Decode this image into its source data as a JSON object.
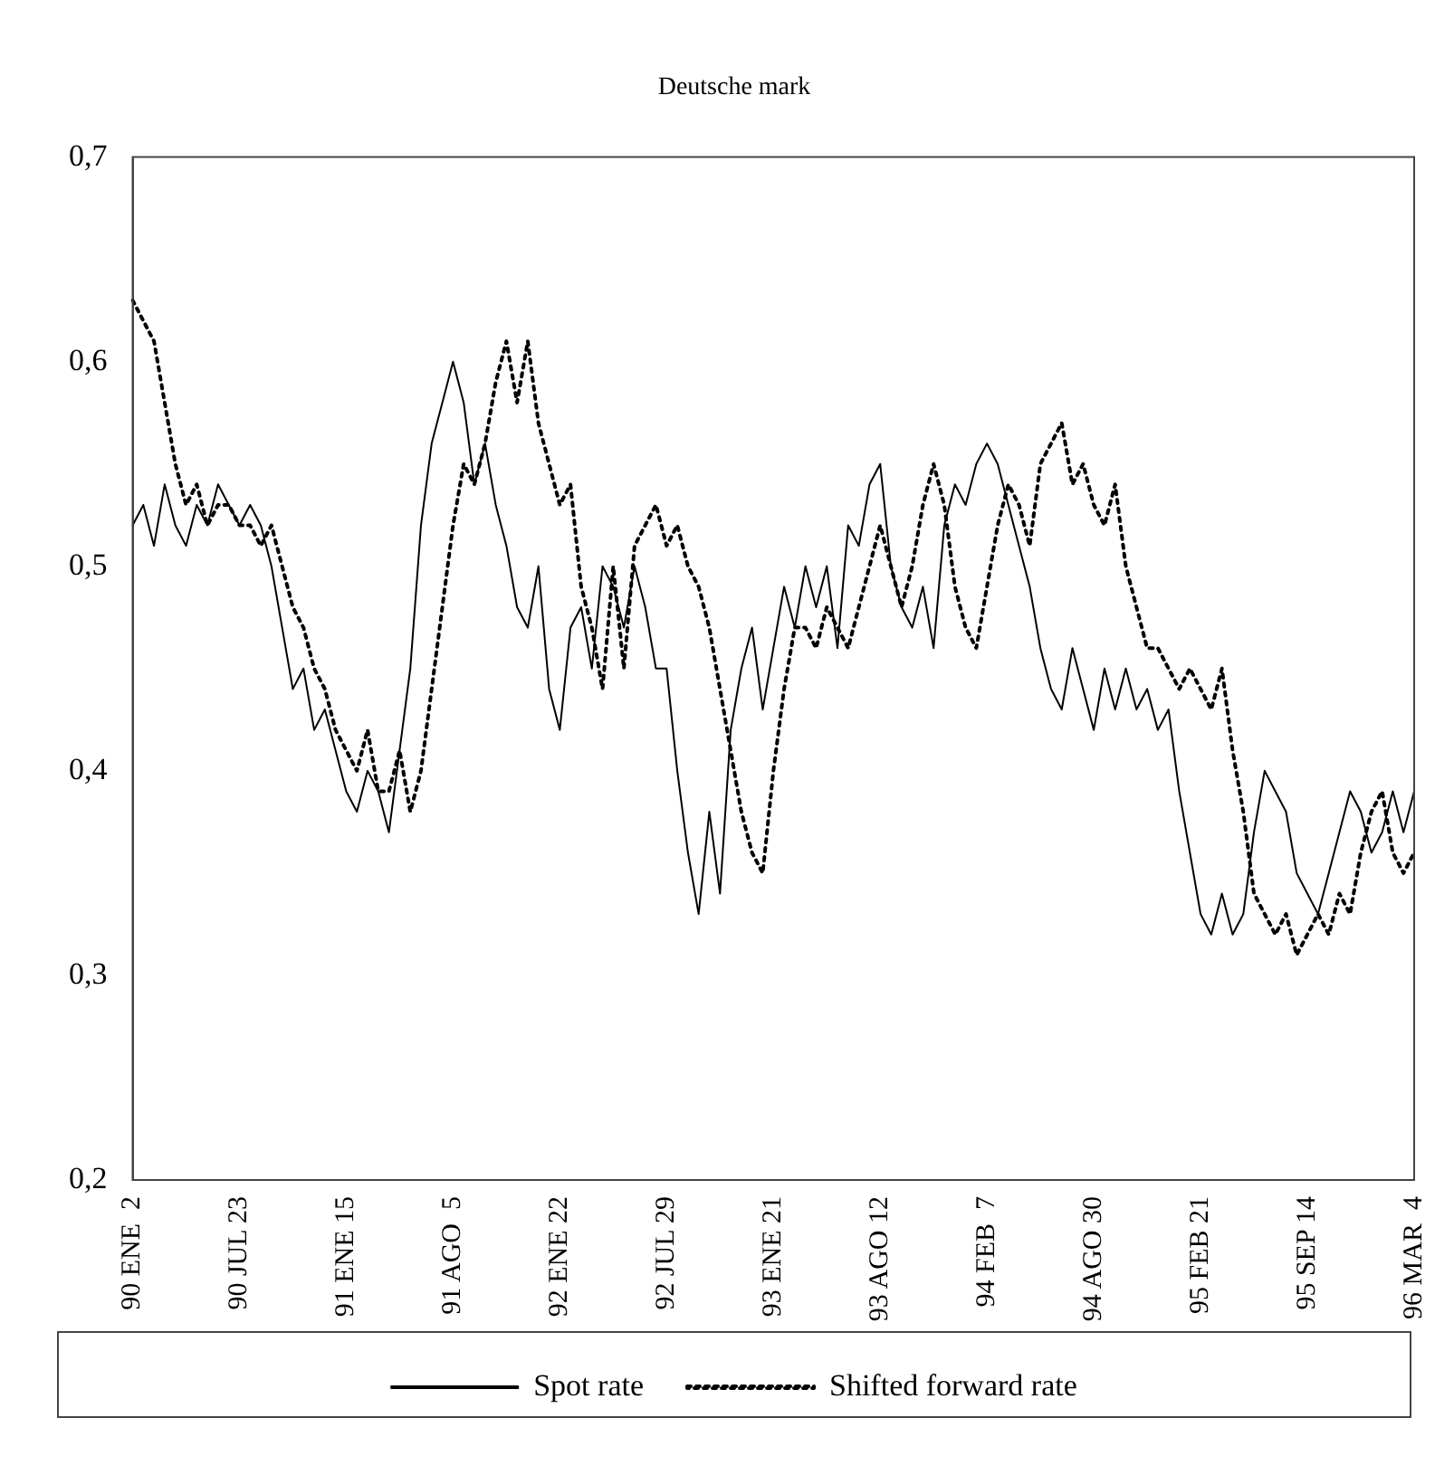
{
  "chart_data": {
    "type": "line",
    "title": "Deutsche mark",
    "categories": [
      "90 ENE  2",
      null,
      null,
      null,
      null,
      null,
      null,
      null,
      null,
      null,
      "90 JUL 23",
      null,
      null,
      null,
      null,
      null,
      null,
      null,
      null,
      null,
      "91 ENE 15",
      null,
      null,
      null,
      null,
      null,
      null,
      null,
      null,
      null,
      "91 AGO  5",
      null,
      null,
      null,
      null,
      null,
      null,
      null,
      null,
      null,
      "92 ENE 22",
      null,
      null,
      null,
      null,
      null,
      null,
      null,
      null,
      null,
      "92 JUL 29",
      null,
      null,
      null,
      null,
      null,
      null,
      null,
      null,
      null,
      "93 ENE 21",
      null,
      null,
      null,
      null,
      null,
      null,
      null,
      null,
      null,
      "93 AGO 12",
      null,
      null,
      null,
      null,
      null,
      null,
      null,
      null,
      null,
      "94 FEB  7",
      null,
      null,
      null,
      null,
      null,
      null,
      null,
      null,
      null,
      "94 AGO 30",
      null,
      null,
      null,
      null,
      null,
      null,
      null,
      null,
      null,
      "95 FEB 21",
      null,
      null,
      null,
      null,
      null,
      null,
      null,
      null,
      null,
      "95 SEP 14",
      null,
      null,
      null,
      null,
      null,
      null,
      null,
      null,
      null,
      "96 MAR  4"
    ],
    "series": [
      {
        "name": "Spot rate",
        "color": "#000000",
        "line_style": "solid",
        "values": [
          0.52,
          0.53,
          0.51,
          0.54,
          0.52,
          0.51,
          0.53,
          0.52,
          0.54,
          0.53,
          0.52,
          0.53,
          0.52,
          0.5,
          0.47,
          0.44,
          0.45,
          0.42,
          0.43,
          0.41,
          0.39,
          0.38,
          0.4,
          0.39,
          0.37,
          0.41,
          0.45,
          0.52,
          0.56,
          0.58,
          0.6,
          0.58,
          0.54,
          0.56,
          0.53,
          0.51,
          0.48,
          0.47,
          0.5,
          0.44,
          0.42,
          0.47,
          0.48,
          0.45,
          0.5,
          0.49,
          0.47,
          0.5,
          0.48,
          0.45,
          0.45,
          0.4,
          0.36,
          0.33,
          0.38,
          0.34,
          0.42,
          0.45,
          0.47,
          0.43,
          0.46,
          0.49,
          0.47,
          0.5,
          0.48,
          0.5,
          0.46,
          0.52,
          0.51,
          0.54,
          0.55,
          0.5,
          0.48,
          0.47,
          0.49,
          0.46,
          0.52,
          0.54,
          0.53,
          0.55,
          0.56,
          0.55,
          0.53,
          0.51,
          0.49,
          0.46,
          0.44,
          0.43,
          0.46,
          0.44,
          0.42,
          0.45,
          0.43,
          0.45,
          0.43,
          0.44,
          0.42,
          0.43,
          0.39,
          0.36,
          0.33,
          0.32,
          0.34,
          0.32,
          0.33,
          0.37,
          0.4,
          0.39,
          0.38,
          0.35,
          0.34,
          0.33,
          0.35,
          0.37,
          0.39,
          0.38,
          0.36,
          0.37,
          0.39,
          0.37,
          0.39
        ]
      },
      {
        "name": "Shifted forward rate",
        "color": "#000000",
        "line_style": "dotted",
        "values": [
          0.63,
          0.62,
          0.61,
          0.58,
          0.55,
          0.53,
          0.54,
          0.52,
          0.53,
          0.53,
          0.52,
          0.52,
          0.51,
          0.52,
          0.5,
          0.48,
          0.47,
          0.45,
          0.44,
          0.42,
          0.41,
          0.4,
          0.42,
          0.39,
          0.39,
          0.41,
          0.38,
          0.4,
          0.44,
          0.48,
          0.52,
          0.55,
          0.54,
          0.56,
          0.59,
          0.61,
          0.58,
          0.61,
          0.57,
          0.55,
          0.53,
          0.54,
          0.49,
          0.47,
          0.44,
          0.5,
          0.45,
          0.51,
          0.52,
          0.53,
          0.51,
          0.52,
          0.5,
          0.49,
          0.47,
          0.44,
          0.41,
          0.38,
          0.36,
          0.35,
          0.4,
          0.44,
          0.47,
          0.47,
          0.46,
          0.48,
          0.47,
          0.46,
          0.48,
          0.5,
          0.52,
          0.5,
          0.48,
          0.5,
          0.53,
          0.55,
          0.53,
          0.49,
          0.47,
          0.46,
          0.49,
          0.52,
          0.54,
          0.53,
          0.51,
          0.55,
          0.56,
          0.57,
          0.54,
          0.55,
          0.53,
          0.52,
          0.54,
          0.5,
          0.48,
          0.46,
          0.46,
          0.45,
          0.44,
          0.45,
          0.44,
          0.43,
          0.45,
          0.41,
          0.38,
          0.34,
          0.33,
          0.32,
          0.33,
          0.31,
          0.32,
          0.33,
          0.32,
          0.34,
          0.33,
          0.36,
          0.38,
          0.39,
          0.36,
          0.35,
          0.36
        ]
      }
    ],
    "ylim": [
      0.2,
      0.7
    ],
    "yticks": [
      {
        "value": 0.2,
        "label": "0,2"
      },
      {
        "value": 0.3,
        "label": "0,3"
      },
      {
        "value": 0.4,
        "label": "0,4"
      },
      {
        "value": 0.5,
        "label": "0,5"
      },
      {
        "value": 0.6,
        "label": "0,6"
      },
      {
        "value": 0.7,
        "label": "0,7"
      }
    ],
    "grid": false,
    "legend": "bottom",
    "marker": "none"
  }
}
